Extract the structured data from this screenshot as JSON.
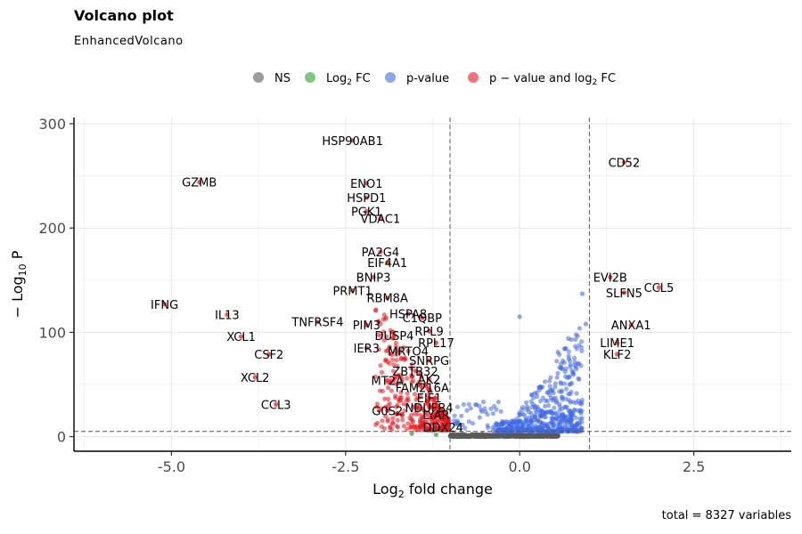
{
  "title": "Volcano plot",
  "subtitle": "EnhancedVolcano",
  "caption": "total = 8327 variables",
  "chart_data": {
    "type": "scatter",
    "title": "Volcano plot",
    "subtitle": "EnhancedVolcano",
    "xlabel": {
      "base": "Log",
      "sub": "2",
      "rest": " fold change"
    },
    "ylabel": {
      "pre": "− Log",
      "sub": "10",
      "rest": " P"
    },
    "xlim": [
      -6.4,
      3.9
    ],
    "ylim": [
      -14,
      306
    ],
    "x_ticks": [
      {
        "value": -5,
        "label": "-5.0"
      },
      {
        "value": -2.5,
        "label": "-2.5"
      },
      {
        "value": 0,
        "label": "0.0"
      },
      {
        "value": 2.5,
        "label": "2.5"
      }
    ],
    "y_ticks": [
      {
        "value": 0,
        "label": "0"
      },
      {
        "value": 100,
        "label": "100"
      },
      {
        "value": 200,
        "label": "200"
      },
      {
        "value": 300,
        "label": "300"
      }
    ],
    "grid": true,
    "fc_cutoff": [
      -1,
      1
    ],
    "p_cutoff_y": 5,
    "legend": {
      "position": "top",
      "entries": [
        {
          "label": "NS",
          "color": "#5a5a5a"
        },
        {
          "label": "Log2 FC",
          "label_parts": [
            "Log",
            "2",
            " FC"
          ],
          "color": "#2ca02c"
        },
        {
          "label": "p-value",
          "color": "#4169e1"
        },
        {
          "label": "p − value and log2 FC",
          "label_parts": [
            "p − value and log",
            "2",
            " FC"
          ],
          "color": "#e8161c"
        }
      ]
    },
    "labeled_points": [
      {
        "label": "HSP90AB1",
        "x": -2.4,
        "y": 284
      },
      {
        "label": "CD52",
        "x": 1.5,
        "y": 263
      },
      {
        "label": "GZMB",
        "x": -4.6,
        "y": 244
      },
      {
        "label": "ENO1",
        "x": -2.2,
        "y": 243
      },
      {
        "label": "HSPD1",
        "x": -2.2,
        "y": 229
      },
      {
        "label": "PGK1",
        "x": -2.2,
        "y": 216
      },
      {
        "label": "VDAC1",
        "x": -2.0,
        "y": 209
      },
      {
        "label": "PA2G4",
        "x": -2.0,
        "y": 177
      },
      {
        "label": "EIF4A1",
        "x": -1.9,
        "y": 167
      },
      {
        "label": "EVI2B",
        "x": 1.3,
        "y": 153
      },
      {
        "label": "BNIP3",
        "x": -2.1,
        "y": 153
      },
      {
        "label": "PRMT1",
        "x": -2.4,
        "y": 140
      },
      {
        "label": "CCL5",
        "x": 2.0,
        "y": 143
      },
      {
        "label": "SLFN5",
        "x": 1.5,
        "y": 138
      },
      {
        "label": "RBM8A",
        "x": -1.9,
        "y": 133
      },
      {
        "label": "HSPA8",
        "x": -1.6,
        "y": 118
      },
      {
        "label": "IFNG",
        "x": -5.1,
        "y": 127
      },
      {
        "label": "C1QBP",
        "x": -1.4,
        "y": 114
      },
      {
        "label": "IL13",
        "x": -4.2,
        "y": 117
      },
      {
        "label": "TNFRSF4",
        "x": -2.9,
        "y": 110
      },
      {
        "label": "PIM3",
        "x": -2.2,
        "y": 107
      },
      {
        "label": "ANXA1",
        "x": 1.6,
        "y": 107
      },
      {
        "label": "RPL9",
        "x": -1.3,
        "y": 101
      },
      {
        "label": "DUSP4",
        "x": -1.8,
        "y": 97
      },
      {
        "label": "XCL1",
        "x": -4.0,
        "y": 96
      },
      {
        "label": "RPL17",
        "x": -1.2,
        "y": 90
      },
      {
        "label": "LIME1",
        "x": 1.4,
        "y": 90
      },
      {
        "label": "IER3",
        "x": -2.2,
        "y": 85
      },
      {
        "label": "MRTO4",
        "x": -1.6,
        "y": 82
      },
      {
        "label": "CSF2",
        "x": -3.6,
        "y": 79
      },
      {
        "label": "KLF2",
        "x": 1.4,
        "y": 79
      },
      {
        "label": "SNRPG",
        "x": -1.3,
        "y": 73
      },
      {
        "label": "ZBTB32",
        "x": -1.5,
        "y": 63
      },
      {
        "label": "XCL2",
        "x": -3.8,
        "y": 57
      },
      {
        "label": "MT2A",
        "x": -1.9,
        "y": 54
      },
      {
        "label": "AK2",
        "x": -1.3,
        "y": 55
      },
      {
        "label": "FAM216A",
        "x": -1.4,
        "y": 47
      },
      {
        "label": "EIF1",
        "x": -1.3,
        "y": 37
      },
      {
        "label": "CCL3",
        "x": -3.5,
        "y": 31
      },
      {
        "label": "NDUFB4",
        "x": -1.3,
        "y": 28
      },
      {
        "label": "G0S2",
        "x": -1.9,
        "y": 25
      },
      {
        "label": "LYAR",
        "x": -1.2,
        "y": 21
      },
      {
        "label": "DDX24",
        "x": -1.1,
        "y": 9
      }
    ]
  }
}
